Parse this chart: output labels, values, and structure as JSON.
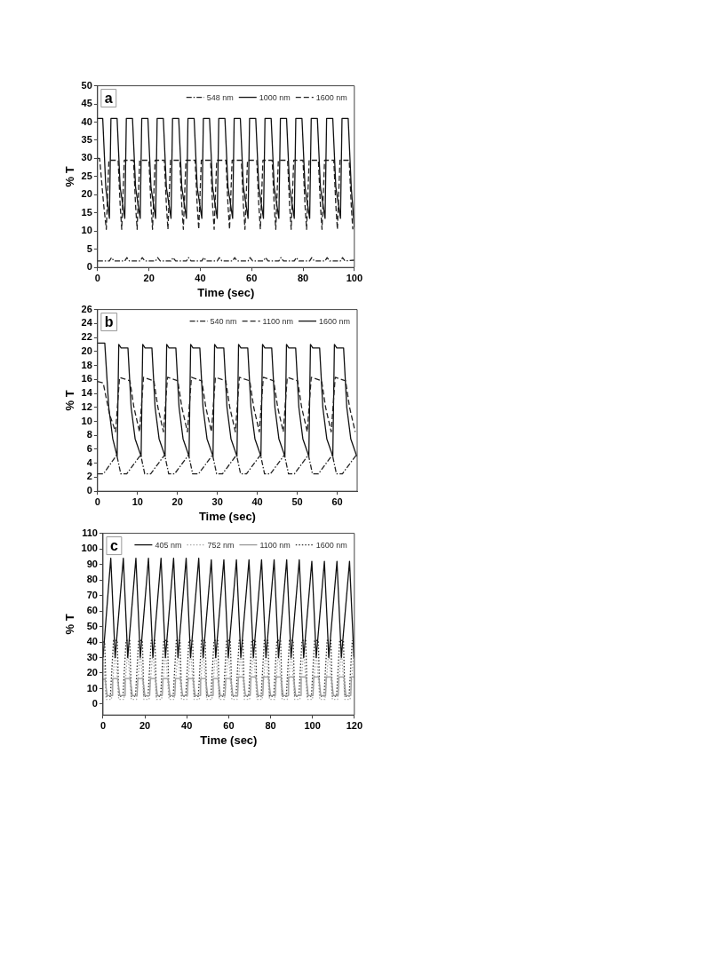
{
  "chart_data": [
    {
      "type": "line",
      "xlabel": "Time (sec)",
      "ylabel": "% T",
      "annotations": [
        "a"
      ],
      "legend": "top right",
      "xlim": [
        0,
        100
      ],
      "xticks": [
        0,
        20,
        40,
        60,
        80,
        100
      ],
      "ylim": [
        0,
        50
      ],
      "yticks": [
        0,
        5,
        10,
        15,
        20,
        25,
        30,
        35,
        40,
        45,
        50
      ],
      "series": [
        {
          "name": "548 nm",
          "color": "#222222",
          "line_style": "dashdot",
          "x": [
            0,
            4.6,
            5.4,
            6.4,
            10.6,
            11.4,
            12.4,
            16.6,
            17.4,
            18.4,
            22.6,
            23.4,
            24.4,
            28.6,
            29.4,
            30.4,
            34.6,
            35.4,
            36.4,
            40.6,
            41.4,
            42.4,
            46.6,
            47.4,
            48.4,
            52.6,
            53.4,
            54.4,
            58.6,
            59.4,
            60.4,
            64.6,
            65.4,
            66.4,
            70.6,
            71.4,
            72.4,
            76.6,
            77.4,
            78.4,
            82.6,
            83.4,
            84.4,
            88.6,
            89.4,
            90.4,
            94.6,
            95.4,
            96.4,
            100
          ],
          "values": [
            1.8,
            1.8,
            2.7,
            1.8,
            1.8,
            2.7,
            1.8,
            1.8,
            2.7,
            1.8,
            1.8,
            2.7,
            1.8,
            1.8,
            2.7,
            1.8,
            1.8,
            2.7,
            1.8,
            1.8,
            2.7,
            1.8,
            1.8,
            2.7,
            1.8,
            1.8,
            2.7,
            1.8,
            1.8,
            2.7,
            1.8,
            1.8,
            2.7,
            1.8,
            1.8,
            2.7,
            1.8,
            1.8,
            2.7,
            1.8,
            1.8,
            2.7,
            1.8,
            1.8,
            2.7,
            1.8,
            1.8,
            2.7,
            1.8,
            2
          ]
        },
        {
          "name": "1000 nm",
          "color": "#111111",
          "line_style": "solid",
          "x": [
            0,
            2,
            3.2,
            4.6,
            5.2,
            7.6,
            8.8,
            10.6,
            11.2,
            13.6,
            14.8,
            16.6,
            17.2,
            19.6,
            20.8,
            22.6,
            23.2,
            25.6,
            26.8,
            28.6,
            29.2,
            31.6,
            32.8,
            34.6,
            35.2,
            37.6,
            38.8,
            40.6,
            41.2,
            43.6,
            44.8,
            46.6,
            47.2,
            49.6,
            50.8,
            52.6,
            53.2,
            55.6,
            56.8,
            58.6,
            59.2,
            61.6,
            62.8,
            64.6,
            65.2,
            67.6,
            68.8,
            70.6,
            71.2,
            73.6,
            74.8,
            76.6,
            77.2,
            79.6,
            80.8,
            82.6,
            83.2,
            85.6,
            86.8,
            88.6,
            89.2,
            91.6,
            92.8,
            94.6,
            95.2,
            97.6,
            98.8,
            100
          ],
          "values": [
            41,
            41,
            22,
            13.5,
            41,
            41,
            22,
            13.5,
            41,
            41,
            22,
            13.5,
            41,
            41,
            22,
            13.5,
            41,
            41,
            22,
            13.5,
            41,
            41,
            22,
            13.5,
            41,
            41,
            22,
            13.5,
            41,
            41,
            22,
            13.5,
            41,
            41,
            22,
            13.5,
            41,
            41,
            22,
            13.5,
            41,
            41,
            22,
            13.5,
            41,
            41,
            22,
            13.5,
            41,
            41,
            22,
            13.5,
            41,
            41,
            22,
            13.5,
            41,
            41,
            22,
            13.5,
            41,
            41,
            22,
            13.5,
            41,
            41,
            22,
            11
          ]
        },
        {
          "name": "1600 nm",
          "color": "#222222",
          "line_style": "dashed",
          "x": [
            0,
            0.8,
            2.4,
            3.4,
            4.4,
            8,
            8.8,
            9.4,
            10.4,
            14,
            14.8,
            15.4,
            16.4,
            20,
            20.8,
            21.4,
            22.4,
            26,
            26.8,
            27.4,
            28.4,
            32,
            32.8,
            33.4,
            34.4,
            38,
            38.8,
            39.4,
            40.4,
            44,
            44.8,
            45.4,
            46.4,
            50,
            50.8,
            51.4,
            52.4,
            56,
            56.8,
            57.4,
            58.4,
            62,
            62.8,
            63.4,
            64.4,
            68,
            68.8,
            69.4,
            70.4,
            74,
            74.8,
            75.4,
            76.4,
            80,
            80.8,
            81.4,
            82.4,
            86,
            86.8,
            87.4,
            88.4,
            92,
            92.8,
            93.4,
            94.4,
            98,
            98.8,
            99.4
          ],
          "values": [
            30,
            30,
            17,
            10.5,
            29.5,
            29.5,
            17,
            10.5,
            29.5,
            29.5,
            17,
            10.5,
            29.5,
            29.5,
            17,
            10.5,
            29.5,
            29.5,
            17,
            10.5,
            29.5,
            29.5,
            17,
            10.5,
            29.5,
            29.5,
            17,
            10.5,
            29.5,
            29.5,
            17,
            10.5,
            29.5,
            29.5,
            17,
            10.5,
            29.5,
            29.5,
            17,
            10.5,
            29.5,
            29.5,
            17,
            10.5,
            29.5,
            29.5,
            17,
            10.5,
            29.5,
            29.5,
            17,
            10.5,
            29.5,
            29.5,
            17,
            10.5,
            29.5,
            29.5,
            17,
            10.5,
            29.5,
            29.5,
            17,
            10.5,
            29.5,
            29.5,
            17,
            10.5
          ]
        }
      ]
    },
    {
      "type": "line",
      "xlabel": "Time (sec)",
      "ylabel": "% T",
      "annotations": [
        "b"
      ],
      "legend": "top right",
      "xlim": [
        0,
        65
      ],
      "xticks": [
        0,
        10,
        20,
        30,
        40,
        50,
        60
      ],
      "ylim": [
        0,
        26
      ],
      "yticks": [
        0,
        2,
        4,
        6,
        8,
        10,
        12,
        14,
        16,
        18,
        20,
        22,
        24,
        26
      ],
      "series": [
        {
          "name": "540 nm",
          "color": "#222222",
          "line_style": "dashdot",
          "x": [
            0,
            1.5,
            4.8,
            5.8,
            7.3,
            10.8,
            11.8,
            13.3,
            16.8,
            17.8,
            19.3,
            22.8,
            23.8,
            25.3,
            28.8,
            29.8,
            31.3,
            34.8,
            35.8,
            37.3,
            40.8,
            41.8,
            43.3,
            46.8,
            47.8,
            49.3,
            52.8,
            53.8,
            55.3,
            58.8,
            59.8,
            61.3,
            64.8
          ],
          "values": [
            2.5,
            2.5,
            5.2,
            2.5,
            2.5,
            5.2,
            2.5,
            2.5,
            5.2,
            2.5,
            2.5,
            5.2,
            2.5,
            2.5,
            5.2,
            2.5,
            2.5,
            5.2,
            2.5,
            2.5,
            5.2,
            2.5,
            2.5,
            5.2,
            2.5,
            2.5,
            5.2,
            2.5,
            2.5,
            5.2,
            2.5,
            2.5,
            5.2
          ]
        },
        {
          "name": "1100 nm",
          "color": "#222222",
          "line_style": "dashed",
          "x": [
            0,
            1.4,
            3,
            4.5,
            5.5,
            8.1,
            9.1,
            10.5,
            11.5,
            14.1,
            15.1,
            16.5,
            17.5,
            20.1,
            21.1,
            22.5,
            23.5,
            26.1,
            27.1,
            28.5,
            29.5,
            32.1,
            33.1,
            34.5,
            35.5,
            38.1,
            39.1,
            40.5,
            41.5,
            44.1,
            45.1,
            46.5,
            47.5,
            50.1,
            51.1,
            52.5,
            53.5,
            56.1,
            57.1,
            58.5,
            59.5,
            62.1,
            63.1,
            64.5
          ],
          "values": [
            15.7,
            15.5,
            11,
            8.5,
            16.3,
            15.8,
            12,
            8.5,
            16.3,
            15.8,
            12,
            8.5,
            16.3,
            15.8,
            12,
            8.5,
            16.3,
            15.8,
            12,
            8.5,
            16.3,
            15.8,
            12,
            8.5,
            16.3,
            15.8,
            12,
            8.5,
            16.3,
            15.8,
            12,
            8.5,
            16.3,
            15.8,
            12,
            8.5,
            16.3,
            15.8,
            12,
            8.5,
            16.3,
            15.8,
            12,
            8.5
          ]
        },
        {
          "name": "1600 nm",
          "color": "#111111",
          "line_style": "solid",
          "x": [
            0,
            1.8,
            2.8,
            3.8,
            4.9,
            5.3,
            5.9,
            7.6,
            8.4,
            9.4,
            10.9,
            11.3,
            11.9,
            13.6,
            14.4,
            15.4,
            16.9,
            17.3,
            17.9,
            19.6,
            20.4,
            21.4,
            22.9,
            23.3,
            23.9,
            25.6,
            26.4,
            27.4,
            28.9,
            29.3,
            29.9,
            31.6,
            32.4,
            33.4,
            34.9,
            35.3,
            35.9,
            37.6,
            38.4,
            39.4,
            40.9,
            41.3,
            41.9,
            43.6,
            44.4,
            45.4,
            46.9,
            47.3,
            47.9,
            49.6,
            50.4,
            51.4,
            52.9,
            53.3,
            53.9,
            55.6,
            56.4,
            57.4,
            58.9,
            59.3,
            59.9,
            61.6,
            62.4,
            63.4,
            64.9
          ],
          "values": [
            21.2,
            21.2,
            12,
            7.5,
            5,
            21,
            20.5,
            20.5,
            12,
            7.5,
            5,
            21,
            20.5,
            20.5,
            12,
            7.5,
            5,
            21,
            20.5,
            20.5,
            12,
            7.5,
            5,
            21,
            20.5,
            20.5,
            12,
            7.5,
            5,
            21,
            20.5,
            20.5,
            12,
            7.5,
            5,
            21,
            20.5,
            20.5,
            12,
            7.5,
            5,
            21,
            20.5,
            20.5,
            12,
            7.5,
            5,
            21,
            20.5,
            20.5,
            12,
            7.5,
            5,
            21,
            20.5,
            20.5,
            12,
            7.5,
            5,
            21,
            20.5,
            20.5,
            12,
            7.5,
            5
          ]
        }
      ]
    },
    {
      "type": "line",
      "xlabel": "Time (sec)",
      "ylabel": "% T",
      "annotations": [
        "c"
      ],
      "legend": "top right",
      "xlim": [
        0,
        120
      ],
      "xticks": [
        0,
        20,
        40,
        60,
        80,
        100,
        120
      ],
      "ylim": [
        -7,
        110
      ],
      "yticks": [
        0,
        10,
        20,
        30,
        40,
        50,
        60,
        70,
        80,
        90,
        100,
        110
      ],
      "series": [
        {
          "name": "405 nm",
          "color": "#111111",
          "line_style": "solid",
          "x": [
            0,
            3.7,
            5.8,
            9.7,
            11.8,
            15.7,
            17.8,
            21.7,
            23.8,
            27.7,
            29.8,
            33.7,
            35.8,
            39.7,
            41.8,
            45.7,
            47.8,
            51.7,
            53.8,
            57.7,
            59.8,
            63.7,
            65.8,
            69.7,
            71.8,
            75.7,
            77.8,
            81.7,
            83.8,
            87.7,
            89.8,
            93.7,
            95.8,
            99.7,
            101.8,
            105.7,
            107.8,
            111.7,
            113.8,
            117.7,
            119.8
          ],
          "values": [
            30,
            94,
            30,
            94,
            30,
            94,
            30,
            94,
            30,
            94,
            30,
            94,
            30,
            94,
            30,
            94,
            30,
            93,
            30,
            93,
            30,
            93,
            30,
            93,
            30,
            93,
            30,
            93,
            30,
            93,
            30,
            93,
            30,
            92,
            30,
            92,
            30,
            92,
            30,
            92,
            30
          ]
        },
        {
          "name": "752 nm",
          "color": "#aaaaaa",
          "line_style": "dotted",
          "x": [
            0,
            1.5,
            4,
            5.8,
            7.5,
            10,
            11.8,
            13.5,
            16,
            17.8,
            19.5,
            22,
            23.8,
            25.5,
            28,
            29.8,
            31.5,
            34,
            35.8,
            37.5,
            40,
            41.8,
            43.5,
            46,
            47.8,
            49.5,
            52,
            53.8,
            55.5,
            58,
            59.8,
            61.5,
            64,
            65.8,
            67.5,
            70,
            71.8,
            73.5,
            76,
            77.8,
            79.5,
            82,
            83.8,
            85.5,
            88,
            89.8,
            91.5,
            94,
            95.8,
            97.5,
            100,
            101.8,
            103.5,
            106,
            107.8,
            109.5,
            112,
            113.8,
            115.5,
            118,
            119.8
          ],
          "values": [
            35,
            3,
            3,
            35,
            3,
            3,
            35,
            3,
            3,
            35,
            3,
            3,
            35,
            3,
            3,
            35,
            3,
            3,
            35,
            3,
            3,
            35,
            3,
            3,
            35,
            3,
            3,
            35,
            3,
            3,
            35,
            3,
            3,
            35,
            3,
            3,
            35,
            3,
            3,
            35,
            3,
            3,
            35,
            3,
            3,
            35,
            3,
            3,
            35,
            3,
            3,
            35,
            3,
            3,
            35,
            3,
            3,
            35,
            3,
            3,
            35
          ]
        },
        {
          "name": "1100 nm",
          "color": "#999999",
          "line_style": "solid",
          "x": [
            0,
            1,
            2,
            4.3,
            4.6,
            7,
            8,
            10.3,
            10.6,
            13,
            14,
            16.3,
            16.6,
            19,
            20,
            22.3,
            22.6,
            25,
            26,
            28.3,
            28.6,
            31,
            32,
            34.3,
            34.6,
            37,
            38,
            40.3,
            40.6,
            43,
            44,
            46.3,
            46.6,
            49,
            50,
            52.3,
            52.6,
            55,
            56,
            58.3,
            58.6,
            61,
            62,
            64.3,
            64.6,
            67,
            68,
            70.3,
            70.6,
            73,
            74,
            76.3,
            76.6,
            79,
            80,
            82.3,
            82.6,
            85,
            86,
            88.3,
            88.6,
            91,
            92,
            94.3,
            94.6,
            97,
            98,
            100.3,
            100.6,
            103,
            104,
            106.3,
            106.6,
            109,
            110,
            112.3,
            112.6,
            115,
            116,
            118.3,
            118.6,
            120
          ],
          "values": [
            16,
            16,
            5.5,
            5.5,
            16.5,
            16.5,
            5.5,
            5.5,
            16.5,
            16.5,
            5.5,
            5.5,
            16.5,
            16.5,
            5.5,
            5.5,
            16.5,
            16.5,
            5.5,
            5.5,
            16.5,
            16.5,
            5.5,
            5.5,
            16.5,
            16.5,
            5.5,
            5.5,
            16.5,
            16.5,
            5.5,
            5.5,
            16.5,
            16.5,
            5.5,
            5.5,
            16.5,
            16.5,
            5.5,
            5.5,
            16.5,
            16.5,
            5.5,
            5.5,
            17.5,
            17.5,
            5.5,
            5.5,
            17.5,
            17.5,
            5.5,
            5.5,
            17.5,
            17.5,
            5.5,
            5.5,
            17.5,
            17.5,
            5.5,
            5.5,
            17.5,
            17.5,
            5.5,
            5.5,
            17.5,
            17.5,
            5.5,
            5.5,
            17.5,
            17.5,
            5.5,
            5.5,
            17.5,
            17.5,
            5.5,
            5.5,
            17.5,
            17.5,
            5.5,
            5.5,
            17.5,
            17.5
          ]
        },
        {
          "name": "1600 nm",
          "color": "#333333",
          "line_style": "dotted",
          "x": [
            0,
            0.8,
            1.5,
            3.5,
            5,
            6.8,
            7.5,
            9.5,
            11,
            12.8,
            13.5,
            15.5,
            17,
            18.8,
            19.5,
            21.5,
            23,
            24.8,
            25.5,
            27.5,
            29,
            30.8,
            31.5,
            33.5,
            35,
            36.8,
            37.5,
            39.5,
            41,
            42.8,
            43.5,
            45.5,
            47,
            48.8,
            49.5,
            51.5,
            53,
            54.8,
            55.5,
            57.5,
            59,
            60.8,
            61.5,
            63.5,
            65,
            66.8,
            67.5,
            69.5,
            71,
            72.8,
            73.5,
            75.5,
            77,
            78.8,
            79.5,
            81.5,
            83,
            84.8,
            85.5,
            87.5,
            89,
            90.8,
            91.5,
            93.5,
            95,
            96.8,
            97.5,
            99.5,
            101,
            102.8,
            103.5,
            105.5,
            107,
            108.8,
            109.5,
            111.5,
            113,
            114.8,
            115.5,
            117.5,
            119
          ],
          "values": [
            40,
            40,
            5,
            5,
            41,
            41,
            5,
            5,
            41,
            41,
            5,
            5,
            41,
            41,
            5,
            5,
            41,
            41,
            5,
            5,
            41,
            41,
            5,
            5,
            41,
            41,
            5,
            5,
            41,
            41,
            5,
            5,
            41,
            41,
            5,
            5,
            41,
            41,
            5,
            5,
            41,
            41,
            5,
            5,
            41,
            41,
            5,
            5,
            41,
            41,
            5,
            5,
            41,
            41,
            5,
            5,
            41,
            41,
            5,
            5,
            41,
            41,
            5,
            5,
            41,
            41,
            5,
            5,
            41,
            41,
            5,
            5,
            41,
            41,
            5,
            5,
            41,
            41,
            5,
            5,
            41
          ]
        }
      ]
    }
  ]
}
